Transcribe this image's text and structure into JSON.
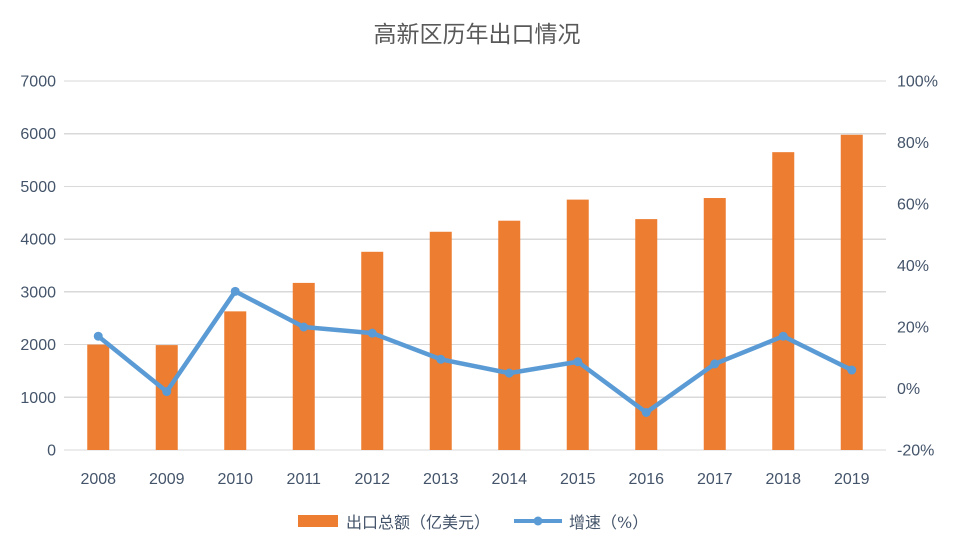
{
  "title": "高新区历年出口情况",
  "colors": {
    "bar": "#ED7D31",
    "line": "#5B9BD5",
    "gridline": "#D9D9D9",
    "axis_text": "#44546A",
    "title_text": "#595959",
    "background": "#FFFFFF"
  },
  "legend": [
    {
      "label": "出口总额（亿美元）",
      "type": "bar-swatch"
    },
    {
      "label": "增速（%）",
      "type": "line-swatch"
    }
  ],
  "chart_data": {
    "type": "bar+line",
    "title": "高新区历年出口情况",
    "categories": [
      "2008",
      "2009",
      "2010",
      "2011",
      "2012",
      "2013",
      "2014",
      "2015",
      "2016",
      "2017",
      "2018",
      "2019"
    ],
    "series": [
      {
        "name": "出口总额（亿美元）",
        "type": "bar",
        "axis": "left",
        "values": [
          2000,
          1990,
          2630,
          3170,
          3760,
          4140,
          4350,
          4750,
          4380,
          4780,
          5650,
          5980
        ]
      },
      {
        "name": "增速（%）",
        "type": "line",
        "axis": "right",
        "values": [
          17,
          -1,
          31.6,
          20,
          18,
          9.5,
          5,
          8.7,
          -7.8,
          8,
          17,
          6
        ]
      }
    ],
    "left_axis": {
      "min": 0,
      "max": 7000,
      "step": 1000,
      "ticks": [
        "0",
        "1000",
        "2000",
        "3000",
        "4000",
        "5000",
        "6000",
        "7000"
      ]
    },
    "right_axis": {
      "min": -20,
      "max": 100,
      "step": 20,
      "ticks": [
        "-20%",
        "0%",
        "20%",
        "40%",
        "60%",
        "80%",
        "100%"
      ]
    },
    "grid": true,
    "legend_position": "bottom"
  }
}
